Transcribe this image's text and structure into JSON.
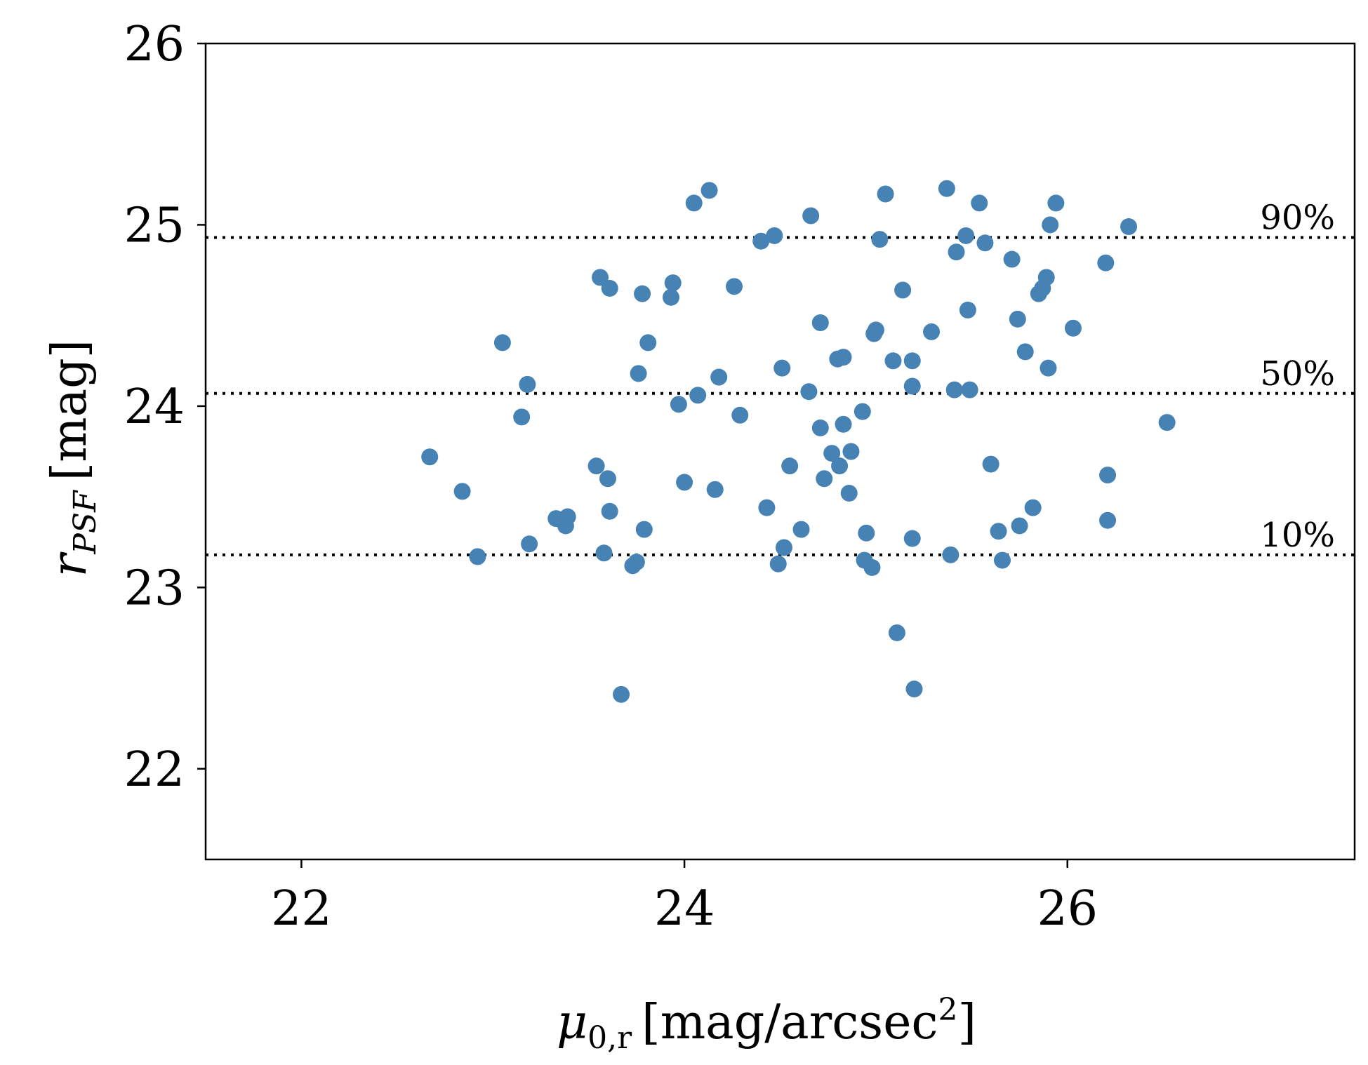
{
  "chart_data": {
    "type": "scatter",
    "title": "",
    "xlabel": {
      "symbol": "μ",
      "sub": "0,r",
      "units_pre": "[mag/arcsec",
      "units_sup": "2",
      "units_post": "]"
    },
    "ylabel": {
      "symbol": "r",
      "sub": "PSF",
      "units": "[mag]"
    },
    "xlim": [
      21.5,
      27.5
    ],
    "ylim": [
      21.5,
      26
    ],
    "xticks": [
      "22",
      "24",
      "26"
    ],
    "yticks": [
      "22",
      "23",
      "24",
      "25",
      "26"
    ],
    "marker_color": "#4682b4",
    "grid": false,
    "reference_lines": [
      {
        "label": "90%",
        "y": 24.93
      },
      {
        "label": "50%",
        "y": 24.07
      },
      {
        "label": "10%",
        "y": 23.18
      }
    ],
    "points": [
      [
        22.67,
        23.72
      ],
      [
        22.84,
        23.53
      ],
      [
        22.92,
        23.17
      ],
      [
        23.05,
        24.35
      ],
      [
        23.15,
        23.94
      ],
      [
        23.18,
        24.12
      ],
      [
        23.19,
        23.24
      ],
      [
        23.33,
        23.38
      ],
      [
        23.38,
        23.34
      ],
      [
        23.39,
        23.39
      ],
      [
        23.54,
        23.67
      ],
      [
        23.56,
        24.71
      ],
      [
        23.58,
        23.19
      ],
      [
        23.6,
        23.6
      ],
      [
        23.61,
        24.65
      ],
      [
        23.61,
        23.42
      ],
      [
        23.67,
        22.41
      ],
      [
        23.73,
        23.12
      ],
      [
        23.75,
        23.14
      ],
      [
        23.76,
        24.18
      ],
      [
        23.78,
        24.62
      ],
      [
        23.79,
        23.32
      ],
      [
        23.81,
        24.35
      ],
      [
        23.93,
        24.6
      ],
      [
        23.94,
        24.68
      ],
      [
        23.97,
        24.01
      ],
      [
        24.0,
        23.58
      ],
      [
        24.05,
        25.12
      ],
      [
        24.07,
        24.06
      ],
      [
        24.13,
        25.19
      ],
      [
        24.16,
        23.54
      ],
      [
        24.18,
        24.16
      ],
      [
        24.26,
        24.66
      ],
      [
        24.29,
        23.95
      ],
      [
        24.4,
        24.91
      ],
      [
        24.43,
        23.44
      ],
      [
        24.47,
        24.94
      ],
      [
        24.49,
        23.13
      ],
      [
        24.51,
        24.21
      ],
      [
        24.52,
        23.22
      ],
      [
        24.55,
        23.67
      ],
      [
        24.61,
        23.32
      ],
      [
        24.65,
        24.08
      ],
      [
        24.66,
        25.05
      ],
      [
        24.71,
        23.88
      ],
      [
        24.71,
        24.46
      ],
      [
        24.73,
        23.6
      ],
      [
        24.77,
        23.74
      ],
      [
        24.8,
        24.26
      ],
      [
        24.81,
        23.67
      ],
      [
        24.83,
        24.27
      ],
      [
        24.83,
        23.9
      ],
      [
        24.86,
        23.52
      ],
      [
        24.87,
        23.75
      ],
      [
        24.93,
        23.97
      ],
      [
        24.94,
        23.15
      ],
      [
        24.95,
        23.3
      ],
      [
        24.98,
        23.11
      ],
      [
        24.99,
        24.4
      ],
      [
        25.0,
        24.42
      ],
      [
        25.02,
        24.92
      ],
      [
        25.05,
        25.17
      ],
      [
        25.09,
        24.25
      ],
      [
        25.11,
        22.75
      ],
      [
        25.14,
        24.64
      ],
      [
        25.19,
        24.11
      ],
      [
        25.19,
        23.27
      ],
      [
        25.19,
        24.25
      ],
      [
        25.2,
        22.44
      ],
      [
        25.29,
        24.41
      ],
      [
        25.37,
        25.2
      ],
      [
        25.39,
        23.18
      ],
      [
        25.41,
        24.09
      ],
      [
        25.42,
        24.85
      ],
      [
        25.47,
        24.94
      ],
      [
        25.48,
        24.53
      ],
      [
        25.49,
        24.09
      ],
      [
        25.54,
        25.12
      ],
      [
        25.57,
        24.9
      ],
      [
        25.6,
        23.68
      ],
      [
        25.64,
        23.31
      ],
      [
        25.66,
        23.15
      ],
      [
        25.71,
        24.81
      ],
      [
        25.74,
        24.48
      ],
      [
        25.75,
        23.34
      ],
      [
        25.78,
        24.3
      ],
      [
        25.82,
        23.44
      ],
      [
        25.85,
        24.62
      ],
      [
        25.87,
        24.65
      ],
      [
        25.89,
        24.71
      ],
      [
        25.9,
        24.21
      ],
      [
        25.91,
        25.0
      ],
      [
        25.94,
        25.12
      ],
      [
        26.03,
        24.43
      ],
      [
        26.2,
        24.79
      ],
      [
        26.21,
        23.37
      ],
      [
        26.21,
        23.62
      ],
      [
        26.32,
        24.99
      ],
      [
        26.52,
        23.91
      ]
    ]
  }
}
